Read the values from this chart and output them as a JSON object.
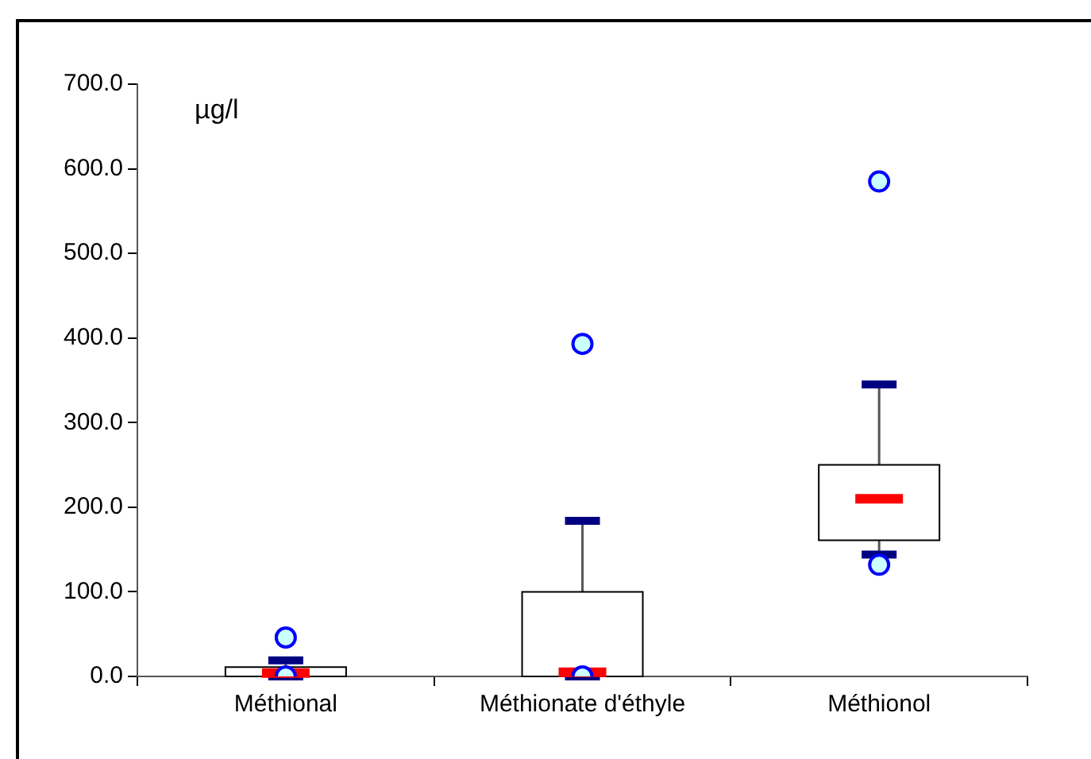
{
  "chart_data": {
    "type": "box",
    "ylabel": "µg/l",
    "categories": [
      "Méthional",
      "Méthionate d'éthyle",
      "Méthionol"
    ],
    "boxes": [
      {
        "low": 0,
        "q1": 0,
        "median": 4,
        "q3": 11,
        "high": 19,
        "outliers": [
          46,
          0
        ]
      },
      {
        "low": 0,
        "q1": 0,
        "median": 5,
        "q3": 100,
        "high": 184,
        "outliers": [
          393,
          0
        ]
      },
      {
        "low": 144,
        "q1": 161,
        "median": 210,
        "q3": 250,
        "high": 345,
        "outliers": [
          585,
          132
        ]
      }
    ],
    "ylim": [
      0,
      700
    ],
    "yticks": [
      {
        "value": 0,
        "label": "0.0"
      },
      {
        "value": 100,
        "label": "100.0"
      },
      {
        "value": 200,
        "label": "200.0"
      },
      {
        "value": 300,
        "label": "300.0"
      },
      {
        "value": 400,
        "label": "400.0"
      },
      {
        "value": 500,
        "label": "500.0"
      },
      {
        "value": 600,
        "label": "600.0"
      },
      {
        "value": 700,
        "label": "700.0"
      }
    ],
    "grid": false,
    "legend": false
  }
}
